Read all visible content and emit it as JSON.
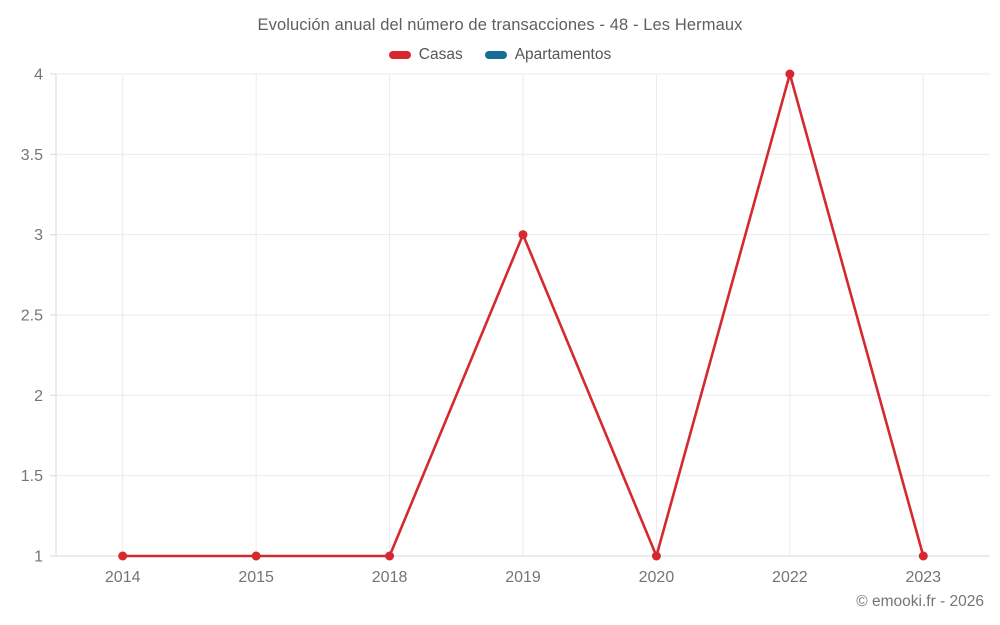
{
  "title": "Evolución anual del número de transacciones - 48 - Les Hermaux",
  "copyright": "© emooki.fr - 2026",
  "colors": {
    "casas": "#d4292f",
    "apartamentos": "#166d96",
    "grid": "#ebebeb",
    "axis": "#d8d8d8",
    "tick_label": "#757575",
    "title_text": "#5f5f5f",
    "legend_text": "#565656"
  },
  "legend": {
    "items": [
      {
        "label": "Casas",
        "color": "#d4292f"
      },
      {
        "label": "Apartamentos",
        "color": "#166d96"
      }
    ]
  },
  "chart_data": {
    "type": "line",
    "title": "Evolución anual del número de transacciones - 48 - Les Hermaux",
    "categories": [
      "2014",
      "2015",
      "2018",
      "2019",
      "2020",
      "2022",
      "2023"
    ],
    "series": [
      {
        "name": "Casas",
        "color": "#d4292f",
        "values": [
          1,
          1,
          1,
          3,
          1,
          4,
          1
        ]
      },
      {
        "name": "Apartamentos",
        "color": "#166d96",
        "values": []
      }
    ],
    "xlabel": "",
    "ylabel": "",
    "ylim": [
      1,
      4
    ],
    "yticks": [
      1,
      1.5,
      2,
      2.5,
      3,
      3.5,
      4
    ],
    "grid": true,
    "legend_position": "top"
  }
}
